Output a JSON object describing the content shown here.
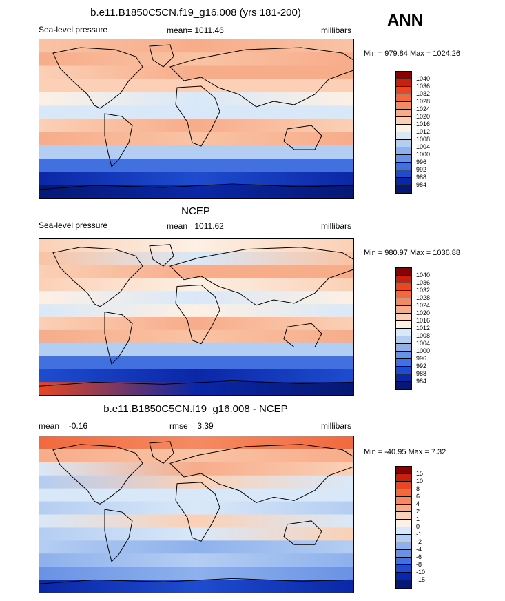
{
  "ann_label": "ANN",
  "panels": [
    {
      "title": "b.e11.B1850C5CN.f19_g16.008 (yrs 181-200)",
      "left_label": "Sea-level pressure",
      "center_label": "mean= 1011.46",
      "right_label": "millibars",
      "minmax": "Min = 979.84 Max = 1024.26",
      "colorbar_labels": [
        "1040",
        "1036",
        "1032",
        "1028",
        "1024",
        "1020",
        "1016",
        "1012",
        "1008",
        "1004",
        "1000",
        "996",
        "992",
        "988",
        "984"
      ],
      "colorbar_colors": [
        "#8b0000",
        "#c8200e",
        "#e84722",
        "#f2693f",
        "#f58a62",
        "#f7ac8a",
        "#fbd0b6",
        "#fdf0e4",
        "#d9e8f8",
        "#b4cdf2",
        "#8eb1ec",
        "#6a92e4",
        "#4270de",
        "#1f4ccf",
        "#0a27a6",
        "#061874"
      ],
      "zonal_bands": [
        [
          "#f9c3a4",
          "#f7ac8a",
          "#f9c3a4"
        ],
        [
          "#f7ac8a",
          "#f9c3a4",
          "#f7ac8a"
        ],
        [
          "#fbd0b6",
          "#f7ac8a",
          "#f7ac8a"
        ],
        [
          "#fbd0b6",
          "#fbd0b6",
          "#fbd0b6"
        ],
        [
          "#fdf0e4",
          "#d9e8f8",
          "#fdf0e4"
        ],
        [
          "#d9e8f8",
          "#d9e8f8",
          "#d9e8f8"
        ],
        [
          "#fbd0b6",
          "#f7ac8a",
          "#fbd0b6"
        ],
        [
          "#f7ac8a",
          "#f9c3a4",
          "#f7ac8a"
        ],
        [
          "#b4cdf2",
          "#b4cdf2",
          "#b4cdf2"
        ],
        [
          "#4270de",
          "#4270de",
          "#4270de"
        ],
        [
          "#0a27a6",
          "#1f4ccf",
          "#0a27a6"
        ],
        [
          "#061874",
          "#0a27a6",
          "#061874"
        ]
      ]
    },
    {
      "title": "NCEP",
      "left_label": "Sea-level pressure",
      "center_label": "mean= 1011.62",
      "right_label": "millibars",
      "minmax": "Min = 980.97 Max = 1036.88",
      "colorbar_labels": [
        "1040",
        "1036",
        "1032",
        "1028",
        "1024",
        "1020",
        "1016",
        "1012",
        "1008",
        "1004",
        "1000",
        "996",
        "992",
        "988",
        "984"
      ],
      "colorbar_colors": [
        "#8b0000",
        "#c8200e",
        "#e84722",
        "#f2693f",
        "#f58a62",
        "#f7ac8a",
        "#fbd0b6",
        "#fdf0e4",
        "#d9e8f8",
        "#b4cdf2",
        "#8eb1ec",
        "#6a92e4",
        "#4270de",
        "#1f4ccf",
        "#0a27a6",
        "#061874"
      ],
      "zonal_bands": [
        [
          "#fbd0b6",
          "#fdf0e4",
          "#fbd0b6"
        ],
        [
          "#f9c3a4",
          "#d9e8f8",
          "#f9c3a4"
        ],
        [
          "#fbd0b6",
          "#f7ac8a",
          "#f7ac8a"
        ],
        [
          "#fbd0b6",
          "#fdf0e4",
          "#fbd0b6"
        ],
        [
          "#fdf0e4",
          "#d9e8f8",
          "#fdf0e4"
        ],
        [
          "#d9e8f8",
          "#fdf0e4",
          "#d9e8f8"
        ],
        [
          "#fbd0b6",
          "#f7ac8a",
          "#fbd0b6"
        ],
        [
          "#f7ac8a",
          "#f9c3a4",
          "#f7ac8a"
        ],
        [
          "#b4cdf2",
          "#b4cdf2",
          "#b4cdf2"
        ],
        [
          "#4270de",
          "#4270de",
          "#4270de"
        ],
        [
          "#1f4ccf",
          "#0a27a6",
          "#1f4ccf"
        ],
        [
          "#e84722",
          "#0a27a6",
          "#061874"
        ]
      ]
    },
    {
      "title": "b.e11.B1850C5CN.f19_g16.008 - NCEP",
      "left_label": "mean =  -0.16",
      "center_label": "rmse =   3.39",
      "right_label": "millibars",
      "minmax": "Min = -40.95 Max =   7.32",
      "colorbar_labels": [
        "15",
        "10",
        "8",
        "6",
        "4",
        "2",
        "1",
        "0",
        "-1",
        "-2",
        "-4",
        "-6",
        "-8",
        "-10",
        "-15"
      ],
      "colorbar_colors": [
        "#8b0000",
        "#c8200e",
        "#e84722",
        "#f2693f",
        "#f58a62",
        "#f7ac8a",
        "#fbd0b6",
        "#fdf0e4",
        "#d9e8f8",
        "#b4cdf2",
        "#8eb1ec",
        "#6a92e4",
        "#4270de",
        "#1f4ccf",
        "#0a27a6",
        "#061874"
      ],
      "zonal_bands": [
        [
          "#f2693f",
          "#f58a62",
          "#f2693f"
        ],
        [
          "#f7ac8a",
          "#f9c3a4",
          "#f7ac8a"
        ],
        [
          "#d9e8f8",
          "#f7ac8a",
          "#fbd0b6"
        ],
        [
          "#b4cdf2",
          "#fbd0b6",
          "#d9e8f8"
        ],
        [
          "#d9e8f8",
          "#d9e8f8",
          "#d9e8f8"
        ],
        [
          "#b4cdf2",
          "#d9e8f8",
          "#b4cdf2"
        ],
        [
          "#d9e8f8",
          "#fbd0b6",
          "#d9e8f8"
        ],
        [
          "#b4cdf2",
          "#d9e8f8",
          "#fbd0b6"
        ],
        [
          "#b4cdf2",
          "#8eb1ec",
          "#b4cdf2"
        ],
        [
          "#8eb1ec",
          "#b4cdf2",
          "#8eb1ec"
        ],
        [
          "#6a92e4",
          "#8eb1ec",
          "#6a92e4"
        ],
        [
          "#0a27a6",
          "#1f4ccf",
          "#0a27a6"
        ]
      ]
    }
  ]
}
